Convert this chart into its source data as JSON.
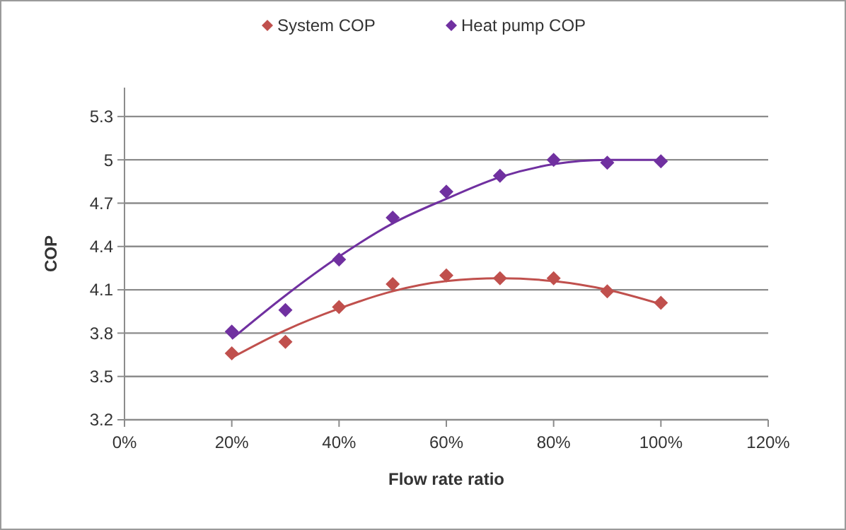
{
  "chart_data": {
    "type": "scatter",
    "xlabel": "Flow rate ratio",
    "ylabel": "COP",
    "xlim": [
      0,
      120
    ],
    "xticks": [
      {
        "value": 0,
        "label": "0%"
      },
      {
        "value": 20,
        "label": "20%"
      },
      {
        "value": 40,
        "label": "40%"
      },
      {
        "value": 60,
        "label": "60%"
      },
      {
        "value": 80,
        "label": "80%"
      },
      {
        "value": 100,
        "label": "100%"
      },
      {
        "value": 120,
        "label": "120%"
      }
    ],
    "ylim": [
      3.2,
      5.5
    ],
    "yticks": [
      3.2,
      3.5,
      3.8,
      4.1,
      4.4,
      4.7,
      5,
      5.3
    ],
    "grid": "y",
    "legend": "top",
    "marker": "diamond",
    "x": [
      20,
      30,
      40,
      50,
      60,
      70,
      80,
      90,
      100
    ],
    "series": [
      {
        "name": "System COP",
        "color": "#c0504d",
        "values": [
          3.66,
          3.74,
          3.98,
          4.14,
          4.2,
          4.18,
          4.18,
          4.09,
          4.01
        ]
      },
      {
        "name": "Heat pump COP",
        "color": "#7030a0",
        "values": [
          3.81,
          3.96,
          4.31,
          4.6,
          4.78,
          4.89,
          5.0,
          4.98,
          4.99
        ]
      },
      {
        "type": "line",
        "color": "#c0504d",
        "marker": "none",
        "x": [
          20,
          30,
          40,
          50,
          60,
          70,
          80,
          90,
          100
        ],
        "values": [
          3.63,
          3.82,
          3.97,
          4.09,
          4.16,
          4.18,
          4.16,
          4.1,
          4.0
        ]
      },
      {
        "type": "line",
        "color": "#7030a0",
        "marker": "none",
        "x": [
          20,
          30,
          40,
          50,
          60,
          70,
          80,
          90,
          100
        ],
        "values": [
          3.76,
          4.06,
          4.33,
          4.56,
          4.73,
          4.88,
          4.97,
          5.0,
          5.0
        ]
      }
    ]
  }
}
